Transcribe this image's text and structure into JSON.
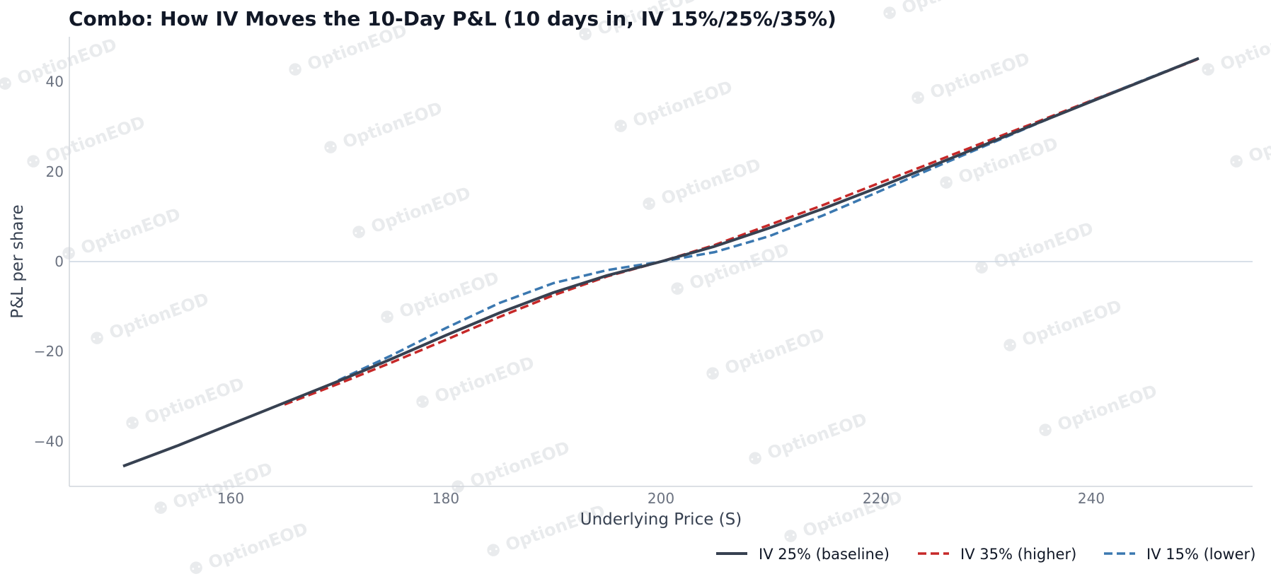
{
  "chart_data": {
    "type": "line",
    "title": "Combo: How IV Moves the 10-Day P&L (10 days in, IV 15%/25%/35%)",
    "xlabel": "Underlying Price (S)",
    "ylabel": "P&L per share",
    "xlim": [
      145,
      255
    ],
    "ylim": [
      -50,
      50
    ],
    "xticks": [
      160,
      180,
      200,
      220,
      240
    ],
    "yticks": [
      -40,
      -20,
      0,
      20,
      40
    ],
    "grid": false,
    "zero_line": true,
    "legend_position": "bottom-right",
    "watermark": "OptionEOD",
    "series": [
      {
        "name": "IV 25% (baseline)",
        "color": "#374151",
        "dash": "solid",
        "x": [
          150,
          155,
          160,
          165,
          170,
          175,
          180,
          185,
          190,
          195,
          200,
          205,
          210,
          215,
          220,
          225,
          230,
          235,
          240,
          245,
          250
        ],
        "y": [
          -45.5,
          -41.0,
          -36.2,
          -31.4,
          -26.6,
          -21.6,
          -16.4,
          -11.4,
          -6.9,
          -3.1,
          0.0,
          3.4,
          7.4,
          11.7,
          16.3,
          21.1,
          25.9,
          30.8,
          35.6,
          40.4,
          45.2
        ]
      },
      {
        "name": "IV 35% (higher)",
        "color": "#c62828",
        "dash": "dashed",
        "x": [
          165,
          170,
          175,
          180,
          185,
          190,
          195,
          200,
          205,
          210,
          215,
          220,
          225,
          230,
          235,
          240,
          245,
          250
        ],
        "y": [
          -31.8,
          -27.2,
          -22.4,
          -17.4,
          -12.3,
          -7.5,
          -3.3,
          0.0,
          3.7,
          8.1,
          12.5,
          17.2,
          21.8,
          26.5,
          31.1,
          35.8,
          40.4,
          45.1
        ]
      },
      {
        "name": "IV 15% (lower)",
        "color": "#3b78b0",
        "dash": "dashed",
        "x": [
          170,
          175,
          180,
          185,
          190,
          195,
          200,
          205,
          210,
          215,
          220,
          225,
          230,
          235,
          240,
          245,
          250
        ],
        "y": [
          -26.4,
          -20.8,
          -14.8,
          -9.2,
          -4.8,
          -1.9,
          0.0,
          2.1,
          5.6,
          10.2,
          15.3,
          20.5,
          25.6,
          30.7,
          35.7,
          40.5,
          45.2
        ]
      }
    ]
  }
}
